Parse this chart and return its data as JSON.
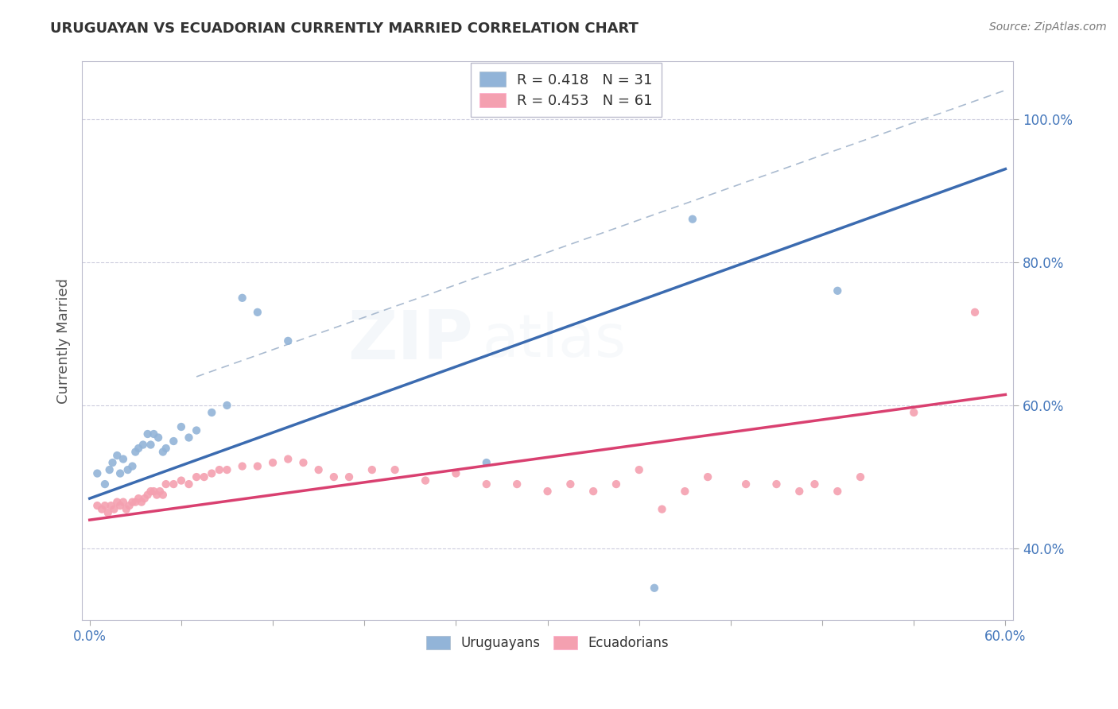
{
  "title": "URUGUAYAN VS ECUADORIAN CURRENTLY MARRIED CORRELATION CHART",
  "source": "Source: ZipAtlas.com",
  "ylabel": "Currently Married",
  "ytick_labels": [
    "40.0%",
    "60.0%",
    "80.0%",
    "100.0%"
  ],
  "ytick_values": [
    0.4,
    0.6,
    0.8,
    1.0
  ],
  "xlim": [
    -0.005,
    0.605
  ],
  "ylim": [
    0.3,
    1.08
  ],
  "legend_line1": "R = 0.418   N = 31",
  "legend_line2": "R = 0.453   N = 61",
  "uruguayan_color": "#92B4D8",
  "ecuadorian_color": "#F4A0B0",
  "uruguayan_line_color": "#3B6BB0",
  "ecuadorian_line_color": "#D94070",
  "ref_line_color": "#AABBD0",
  "uruguayan_x": [
    0.005,
    0.01,
    0.013,
    0.015,
    0.018,
    0.02,
    0.022,
    0.025,
    0.028,
    0.03,
    0.032,
    0.035,
    0.038,
    0.04,
    0.042,
    0.045,
    0.048,
    0.05,
    0.055,
    0.06,
    0.065,
    0.07,
    0.08,
    0.09,
    0.1,
    0.11,
    0.13,
    0.26,
    0.37,
    0.395,
    0.49
  ],
  "uruguayan_y": [
    0.505,
    0.49,
    0.51,
    0.52,
    0.53,
    0.505,
    0.525,
    0.51,
    0.515,
    0.535,
    0.54,
    0.545,
    0.56,
    0.545,
    0.56,
    0.555,
    0.535,
    0.54,
    0.55,
    0.57,
    0.555,
    0.565,
    0.59,
    0.6,
    0.75,
    0.73,
    0.69,
    0.52,
    0.345,
    0.86,
    0.76
  ],
  "ecuadorian_x": [
    0.005,
    0.008,
    0.01,
    0.012,
    0.014,
    0.016,
    0.018,
    0.02,
    0.022,
    0.024,
    0.026,
    0.028,
    0.03,
    0.032,
    0.034,
    0.036,
    0.038,
    0.04,
    0.042,
    0.044,
    0.046,
    0.048,
    0.05,
    0.055,
    0.06,
    0.065,
    0.07,
    0.075,
    0.08,
    0.085,
    0.09,
    0.1,
    0.11,
    0.12,
    0.13,
    0.14,
    0.15,
    0.16,
    0.17,
    0.185,
    0.2,
    0.22,
    0.24,
    0.26,
    0.28,
    0.3,
    0.315,
    0.33,
    0.345,
    0.36,
    0.375,
    0.39,
    0.405,
    0.43,
    0.45,
    0.465,
    0.475,
    0.49,
    0.505,
    0.54,
    0.58
  ],
  "ecuadorian_y": [
    0.46,
    0.455,
    0.46,
    0.45,
    0.46,
    0.455,
    0.465,
    0.46,
    0.465,
    0.455,
    0.46,
    0.465,
    0.465,
    0.47,
    0.465,
    0.47,
    0.475,
    0.48,
    0.48,
    0.475,
    0.48,
    0.475,
    0.49,
    0.49,
    0.495,
    0.49,
    0.5,
    0.5,
    0.505,
    0.51,
    0.51,
    0.515,
    0.515,
    0.52,
    0.525,
    0.52,
    0.51,
    0.5,
    0.5,
    0.51,
    0.51,
    0.495,
    0.505,
    0.49,
    0.49,
    0.48,
    0.49,
    0.48,
    0.49,
    0.51,
    0.455,
    0.48,
    0.5,
    0.49,
    0.49,
    0.48,
    0.49,
    0.48,
    0.5,
    0.59,
    0.73
  ],
  "background_color": "#FFFFFF",
  "grid_color": "#CCCCDD",
  "watermark_alpha": 0.18
}
